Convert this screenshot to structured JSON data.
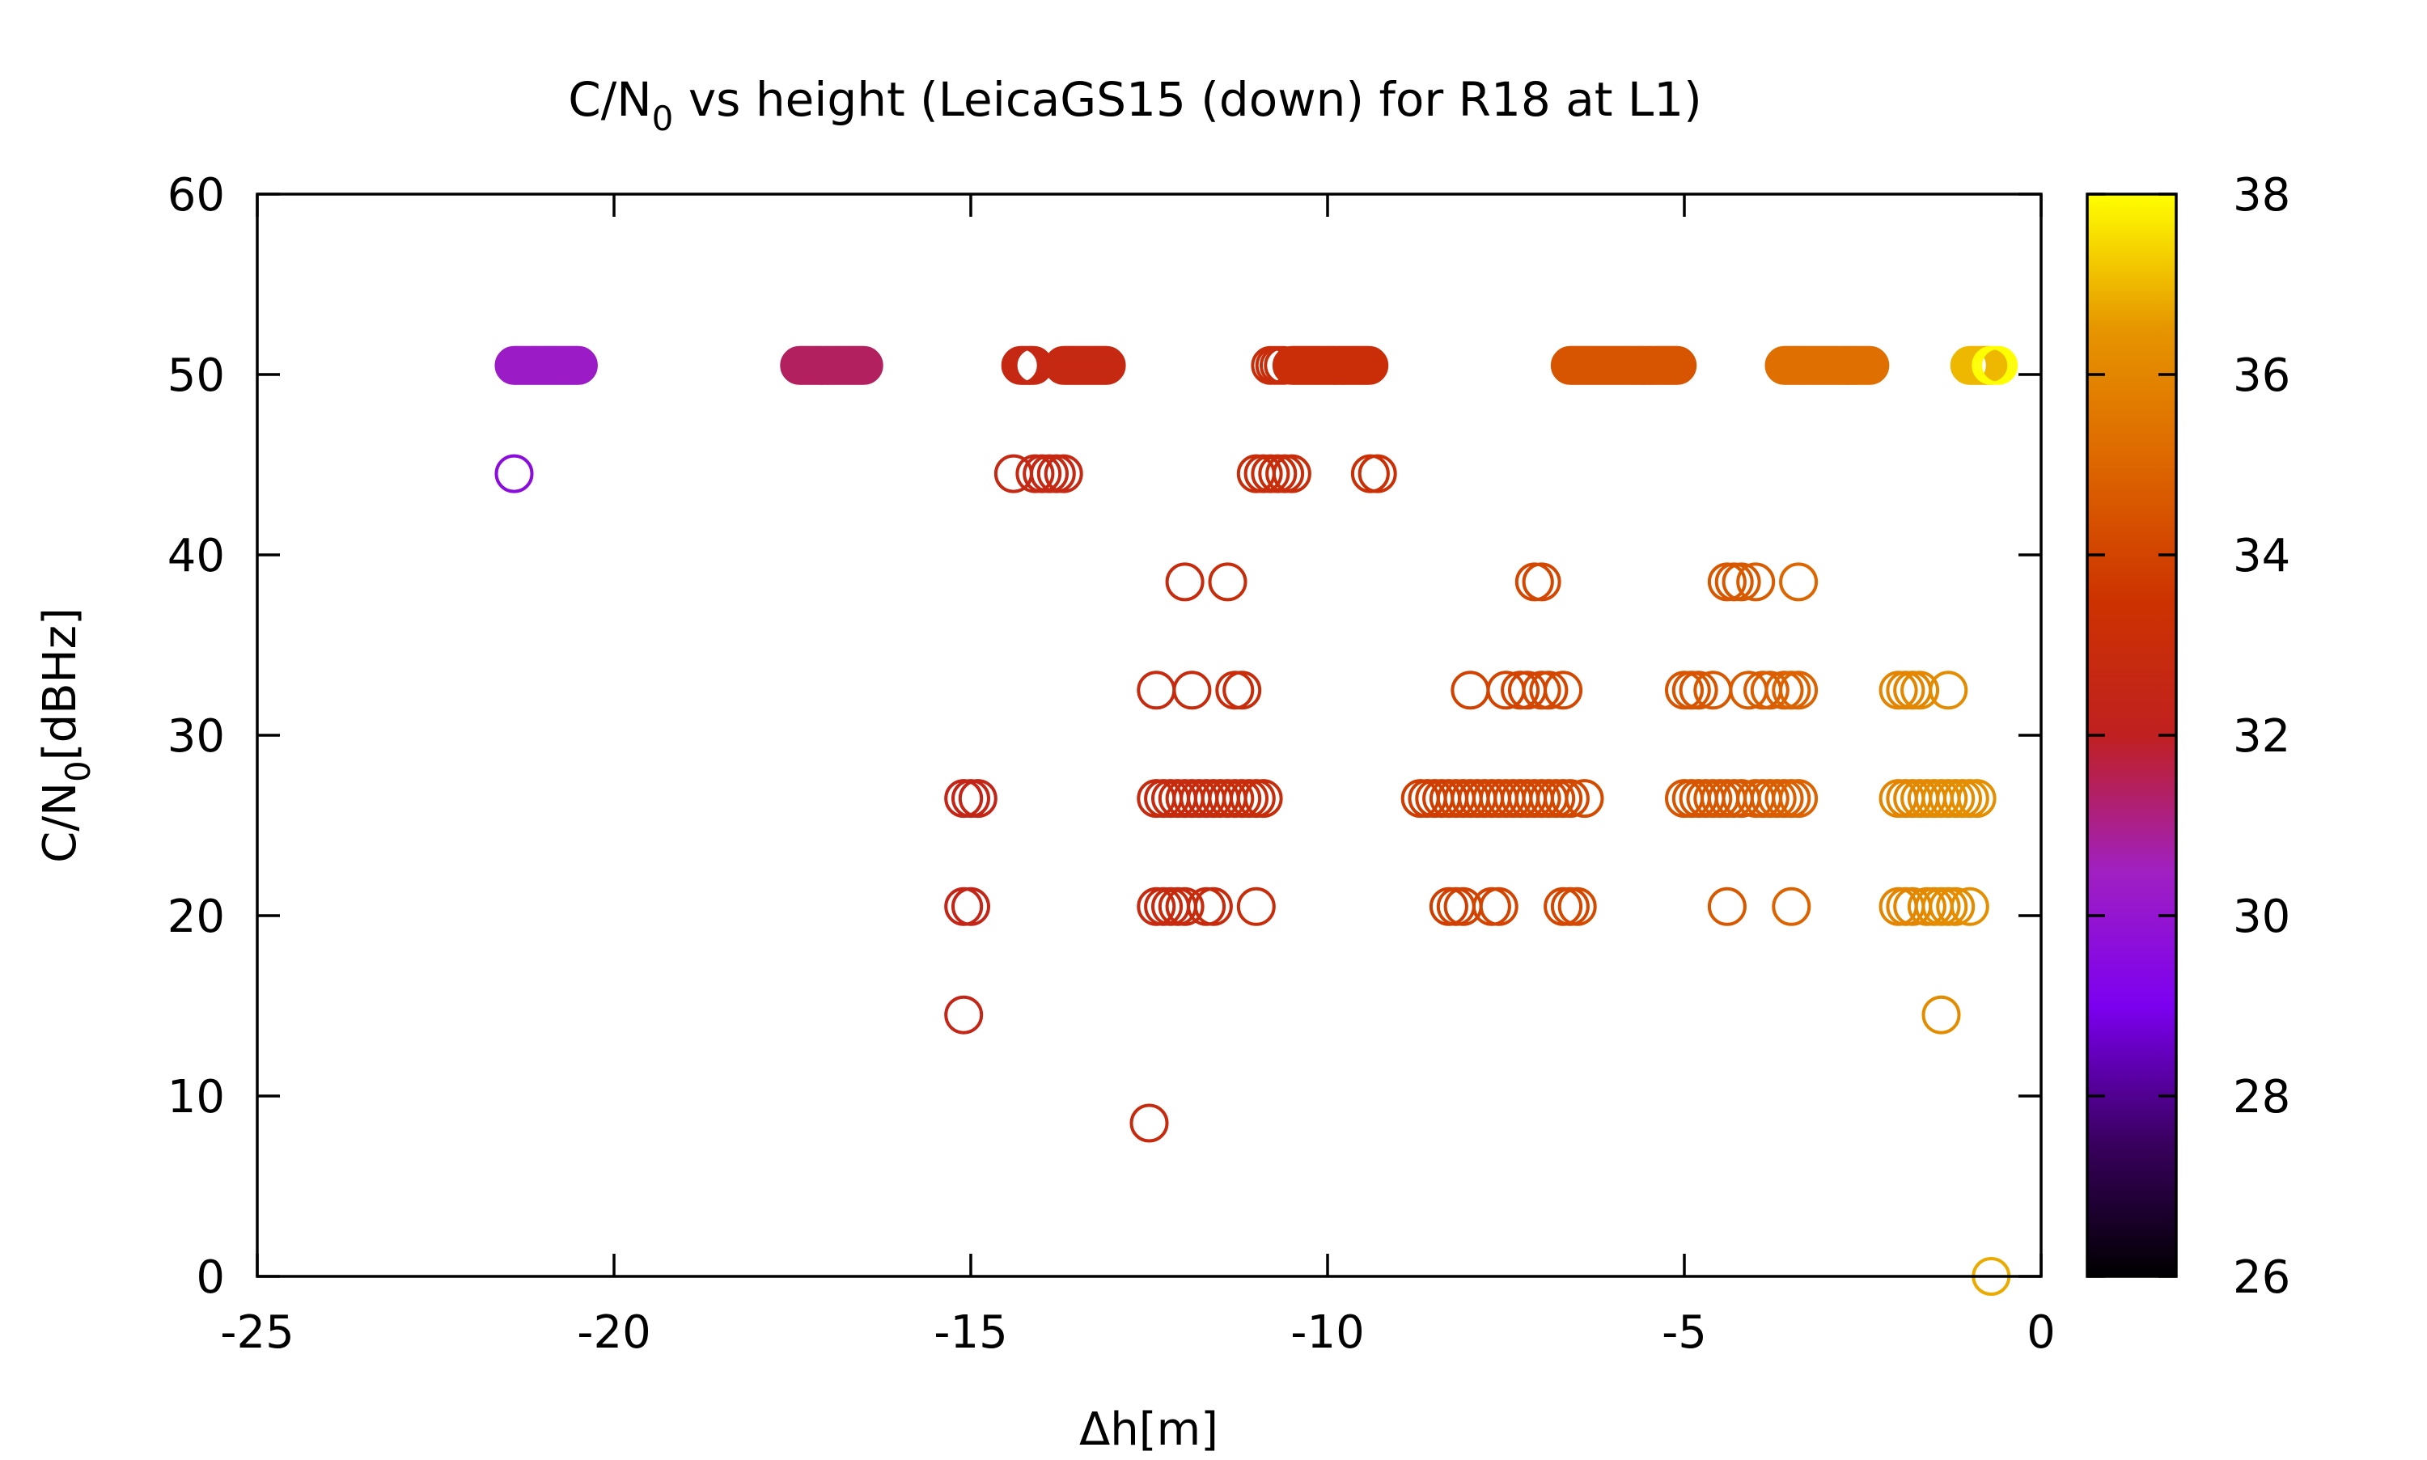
{
  "chart_data": {
    "type": "scatter",
    "title": {
      "main": "C/N",
      "sub": "0",
      "rest": " vs height (LeicaGS15 (down) for R18 at L1)"
    },
    "xlabel": "Δh[m]",
    "ylabel": {
      "main": "C/N",
      "sub": "0",
      "rest": "[dBHz]"
    },
    "xlim": [
      -25,
      0
    ],
    "ylim": [
      0,
      60
    ],
    "xticks": [
      "-25",
      "-20",
      "-15",
      "-10",
      "-5",
      "0"
    ],
    "yticks": [
      "0",
      "10",
      "20",
      "30",
      "40",
      "50",
      "60"
    ],
    "colorbar": {
      "range": [
        26,
        38
      ],
      "ticks": [
        "26",
        "28",
        "30",
        "32",
        "34",
        "36",
        "38"
      ],
      "palette": [
        "#000000",
        "#3a0060",
        "#7c00f0",
        "#a020c0",
        "#c02020",
        "#cc3300",
        "#dd6600",
        "#e69500",
        "#ffff00"
      ]
    },
    "marker": "open-circle",
    "grid": false,
    "legend": "none",
    "series": [
      {
        "y": 50.5,
        "x_start": -21.4,
        "x_end": -20.5,
        "step": 0.03,
        "value": 30.3
      },
      {
        "y": 50.5,
        "x_start": -17.4,
        "x_end": -16.5,
        "step": 0.03,
        "value": 31.4
      },
      {
        "y": 50.5,
        "x_start": -14.3,
        "x_end": -14.1,
        "step": 0.03,
        "value": 32.6
      },
      {
        "y": 50.5,
        "x_start": -13.7,
        "x_end": -13.1,
        "step": 0.03,
        "value": 32.7
      },
      {
        "y": 50.5,
        "x_start": -10.8,
        "x_end": -10.6,
        "step": 0.06,
        "value": 33.0
      },
      {
        "y": 50.5,
        "x_start": -10.5,
        "x_end": -9.4,
        "step": 0.03,
        "value": 33.1
      },
      {
        "y": 50.5,
        "x_start": -6.6,
        "x_end": -5.1,
        "step": 0.03,
        "value": 34.5
      },
      {
        "y": 50.5,
        "x_start": -3.6,
        "x_end": -2.4,
        "step": 0.03,
        "value": 35.3
      },
      {
        "y": 50.5,
        "x_start": -1.0,
        "x_end": -0.7,
        "step": 0.03,
        "value": 37.0
      },
      {
        "y": 50.5,
        "x_start": -0.7,
        "x_end": -0.6,
        "step": 0.05,
        "value": 38.0
      }
    ],
    "points": [
      {
        "x": -21.4,
        "y": 44.5,
        "value": 29.6
      },
      {
        "x": -14.4,
        "y": 44.5,
        "value": 32.6
      },
      {
        "x": -14.1,
        "y": 44.5,
        "value": 32.6
      },
      {
        "x": -14.0,
        "y": 44.5,
        "value": 32.6
      },
      {
        "x": -13.9,
        "y": 44.5,
        "value": 32.6
      },
      {
        "x": -13.8,
        "y": 44.5,
        "value": 32.6
      },
      {
        "x": -13.7,
        "y": 44.5,
        "value": 32.6
      },
      {
        "x": -11.0,
        "y": 44.5,
        "value": 33.0
      },
      {
        "x": -10.9,
        "y": 44.5,
        "value": 33.0
      },
      {
        "x": -10.8,
        "y": 44.5,
        "value": 33.0
      },
      {
        "x": -10.7,
        "y": 44.5,
        "value": 33.0
      },
      {
        "x": -10.6,
        "y": 44.5,
        "value": 33.0
      },
      {
        "x": -10.5,
        "y": 44.5,
        "value": 33.0
      },
      {
        "x": -9.4,
        "y": 44.5,
        "value": 33.2
      },
      {
        "x": -9.3,
        "y": 44.5,
        "value": 33.2
      },
      {
        "x": -12.0,
        "y": 38.5,
        "value": 32.9
      },
      {
        "x": -11.4,
        "y": 38.5,
        "value": 33.0
      },
      {
        "x": -7.1,
        "y": 38.5,
        "value": 34.1
      },
      {
        "x": -7.0,
        "y": 38.5,
        "value": 34.1
      },
      {
        "x": -4.4,
        "y": 38.5,
        "value": 34.6
      },
      {
        "x": -4.3,
        "y": 38.5,
        "value": 34.6
      },
      {
        "x": -4.2,
        "y": 38.5,
        "value": 34.6
      },
      {
        "x": -4.0,
        "y": 38.5,
        "value": 34.7
      },
      {
        "x": -3.4,
        "y": 38.5,
        "value": 35.0
      },
      {
        "x": -12.4,
        "y": 32.5,
        "value": 32.8
      },
      {
        "x": -11.9,
        "y": 32.5,
        "value": 32.9
      },
      {
        "x": -11.3,
        "y": 32.5,
        "value": 33.0
      },
      {
        "x": -11.2,
        "y": 32.5,
        "value": 33.0
      },
      {
        "x": -8.0,
        "y": 32.5,
        "value": 33.9
      },
      {
        "x": -7.5,
        "y": 32.5,
        "value": 34.0
      },
      {
        "x": -7.3,
        "y": 32.5,
        "value": 34.0
      },
      {
        "x": -7.2,
        "y": 32.5,
        "value": 34.0
      },
      {
        "x": -7.0,
        "y": 32.5,
        "value": 34.1
      },
      {
        "x": -6.9,
        "y": 32.5,
        "value": 34.1
      },
      {
        "x": -6.7,
        "y": 32.5,
        "value": 34.1
      },
      {
        "x": -5.0,
        "y": 32.5,
        "value": 34.5
      },
      {
        "x": -4.9,
        "y": 32.5,
        "value": 34.5
      },
      {
        "x": -4.8,
        "y": 32.5,
        "value": 34.5
      },
      {
        "x": -4.6,
        "y": 32.5,
        "value": 34.6
      },
      {
        "x": -4.1,
        "y": 32.5,
        "value": 34.7
      },
      {
        "x": -3.9,
        "y": 32.5,
        "value": 34.7
      },
      {
        "x": -3.8,
        "y": 32.5,
        "value": 34.8
      },
      {
        "x": -3.6,
        "y": 32.5,
        "value": 34.8
      },
      {
        "x": -3.5,
        "y": 32.5,
        "value": 34.9
      },
      {
        "x": -3.4,
        "y": 32.5,
        "value": 34.9
      },
      {
        "x": -2.0,
        "y": 32.5,
        "value": 36.0
      },
      {
        "x": -1.9,
        "y": 32.5,
        "value": 36.0
      },
      {
        "x": -1.8,
        "y": 32.5,
        "value": 36.0
      },
      {
        "x": -1.7,
        "y": 32.5,
        "value": 36.1
      },
      {
        "x": -1.3,
        "y": 32.5,
        "value": 36.2
      },
      {
        "x": -15.1,
        "y": 26.5,
        "value": 32.4
      },
      {
        "x": -15.0,
        "y": 26.5,
        "value": 32.4
      },
      {
        "x": -14.9,
        "y": 26.5,
        "value": 32.4
      },
      {
        "x": -12.4,
        "y": 26.5,
        "value": 32.8
      },
      {
        "x": -12.3,
        "y": 26.5,
        "value": 32.8
      },
      {
        "x": -12.2,
        "y": 26.5,
        "value": 32.8
      },
      {
        "x": -12.1,
        "y": 26.5,
        "value": 32.9
      },
      {
        "x": -12.0,
        "y": 26.5,
        "value": 32.9
      },
      {
        "x": -11.9,
        "y": 26.5,
        "value": 32.9
      },
      {
        "x": -11.8,
        "y": 26.5,
        "value": 32.9
      },
      {
        "x": -11.7,
        "y": 26.5,
        "value": 32.9
      },
      {
        "x": -11.6,
        "y": 26.5,
        "value": 32.9
      },
      {
        "x": -11.5,
        "y": 26.5,
        "value": 33.0
      },
      {
        "x": -11.4,
        "y": 26.5,
        "value": 33.0
      },
      {
        "x": -11.3,
        "y": 26.5,
        "value": 33.0
      },
      {
        "x": -11.2,
        "y": 26.5,
        "value": 33.0
      },
      {
        "x": -11.1,
        "y": 26.5,
        "value": 33.0
      },
      {
        "x": -11.0,
        "y": 26.5,
        "value": 33.0
      },
      {
        "x": -10.9,
        "y": 26.5,
        "value": 33.0
      },
      {
        "x": -8.7,
        "y": 26.5,
        "value": 33.8
      },
      {
        "x": -8.6,
        "y": 26.5,
        "value": 33.8
      },
      {
        "x": -8.5,
        "y": 26.5,
        "value": 33.8
      },
      {
        "x": -8.4,
        "y": 26.5,
        "value": 33.8
      },
      {
        "x": -8.3,
        "y": 26.5,
        "value": 33.8
      },
      {
        "x": -8.2,
        "y": 26.5,
        "value": 33.9
      },
      {
        "x": -8.1,
        "y": 26.5,
        "value": 33.9
      },
      {
        "x": -8.0,
        "y": 26.5,
        "value": 33.9
      },
      {
        "x": -7.9,
        "y": 26.5,
        "value": 33.9
      },
      {
        "x": -7.8,
        "y": 26.5,
        "value": 33.9
      },
      {
        "x": -7.7,
        "y": 26.5,
        "value": 34.0
      },
      {
        "x": -7.6,
        "y": 26.5,
        "value": 34.0
      },
      {
        "x": -7.5,
        "y": 26.5,
        "value": 34.0
      },
      {
        "x": -7.4,
        "y": 26.5,
        "value": 34.0
      },
      {
        "x": -7.3,
        "y": 26.5,
        "value": 34.0
      },
      {
        "x": -7.2,
        "y": 26.5,
        "value": 34.0
      },
      {
        "x": -7.1,
        "y": 26.5,
        "value": 34.1
      },
      {
        "x": -7.0,
        "y": 26.5,
        "value": 34.1
      },
      {
        "x": -6.9,
        "y": 26.5,
        "value": 34.1
      },
      {
        "x": -6.8,
        "y": 26.5,
        "value": 34.1
      },
      {
        "x": -6.7,
        "y": 26.5,
        "value": 34.1
      },
      {
        "x": -6.6,
        "y": 26.5,
        "value": 34.1
      },
      {
        "x": -6.4,
        "y": 26.5,
        "value": 34.2
      },
      {
        "x": -5.0,
        "y": 26.5,
        "value": 34.5
      },
      {
        "x": -4.9,
        "y": 26.5,
        "value": 34.5
      },
      {
        "x": -4.8,
        "y": 26.5,
        "value": 34.5
      },
      {
        "x": -4.7,
        "y": 26.5,
        "value": 34.5
      },
      {
        "x": -4.6,
        "y": 26.5,
        "value": 34.6
      },
      {
        "x": -4.5,
        "y": 26.5,
        "value": 34.6
      },
      {
        "x": -4.4,
        "y": 26.5,
        "value": 34.6
      },
      {
        "x": -4.3,
        "y": 26.5,
        "value": 34.6
      },
      {
        "x": -4.2,
        "y": 26.5,
        "value": 34.6
      },
      {
        "x": -4.0,
        "y": 26.5,
        "value": 34.7
      },
      {
        "x": -3.9,
        "y": 26.5,
        "value": 34.7
      },
      {
        "x": -3.8,
        "y": 26.5,
        "value": 34.7
      },
      {
        "x": -3.7,
        "y": 26.5,
        "value": 34.8
      },
      {
        "x": -3.6,
        "y": 26.5,
        "value": 34.8
      },
      {
        "x": -3.5,
        "y": 26.5,
        "value": 34.8
      },
      {
        "x": -3.4,
        "y": 26.5,
        "value": 34.9
      },
      {
        "x": -2.0,
        "y": 26.5,
        "value": 36.0
      },
      {
        "x": -1.9,
        "y": 26.5,
        "value": 36.0
      },
      {
        "x": -1.8,
        "y": 26.5,
        "value": 36.0
      },
      {
        "x": -1.7,
        "y": 26.5,
        "value": 36.1
      },
      {
        "x": -1.6,
        "y": 26.5,
        "value": 36.1
      },
      {
        "x": -1.5,
        "y": 26.5,
        "value": 36.1
      },
      {
        "x": -1.4,
        "y": 26.5,
        "value": 36.2
      },
      {
        "x": -1.3,
        "y": 26.5,
        "value": 36.2
      },
      {
        "x": -1.2,
        "y": 26.5,
        "value": 36.2
      },
      {
        "x": -1.1,
        "y": 26.5,
        "value": 36.2
      },
      {
        "x": -1.0,
        "y": 26.5,
        "value": 36.3
      },
      {
        "x": -0.9,
        "y": 26.5,
        "value": 36.3
      },
      {
        "x": -15.1,
        "y": 20.5,
        "value": 32.4
      },
      {
        "x": -15.0,
        "y": 20.5,
        "value": 32.4
      },
      {
        "x": -12.4,
        "y": 20.5,
        "value": 32.8
      },
      {
        "x": -12.3,
        "y": 20.5,
        "value": 32.8
      },
      {
        "x": -12.2,
        "y": 20.5,
        "value": 32.8
      },
      {
        "x": -12.1,
        "y": 20.5,
        "value": 32.9
      },
      {
        "x": -12.0,
        "y": 20.5,
        "value": 32.9
      },
      {
        "x": -11.7,
        "y": 20.5,
        "value": 32.9
      },
      {
        "x": -11.6,
        "y": 20.5,
        "value": 32.9
      },
      {
        "x": -11.0,
        "y": 20.5,
        "value": 33.0
      },
      {
        "x": -8.3,
        "y": 20.5,
        "value": 33.8
      },
      {
        "x": -8.2,
        "y": 20.5,
        "value": 33.9
      },
      {
        "x": -8.1,
        "y": 20.5,
        "value": 33.9
      },
      {
        "x": -7.7,
        "y": 20.5,
        "value": 34.0
      },
      {
        "x": -7.6,
        "y": 20.5,
        "value": 34.0
      },
      {
        "x": -6.7,
        "y": 20.5,
        "value": 34.1
      },
      {
        "x": -6.6,
        "y": 20.5,
        "value": 34.1
      },
      {
        "x": -6.5,
        "y": 20.5,
        "value": 34.2
      },
      {
        "x": -4.4,
        "y": 20.5,
        "value": 34.6
      },
      {
        "x": -3.5,
        "y": 20.5,
        "value": 34.9
      },
      {
        "x": -2.0,
        "y": 20.5,
        "value": 36.0
      },
      {
        "x": -1.9,
        "y": 20.5,
        "value": 36.0
      },
      {
        "x": -1.8,
        "y": 20.5,
        "value": 36.0
      },
      {
        "x": -1.6,
        "y": 20.5,
        "value": 36.1
      },
      {
        "x": -1.5,
        "y": 20.5,
        "value": 36.1
      },
      {
        "x": -1.4,
        "y": 20.5,
        "value": 36.2
      },
      {
        "x": -1.3,
        "y": 20.5,
        "value": 36.2
      },
      {
        "x": -1.2,
        "y": 20.5,
        "value": 36.2
      },
      {
        "x": -1.0,
        "y": 20.5,
        "value": 36.3
      },
      {
        "x": -15.1,
        "y": 14.5,
        "value": 32.4
      },
      {
        "x": -1.4,
        "y": 14.5,
        "value": 36.2
      },
      {
        "x": -12.5,
        "y": 8.5,
        "value": 32.8
      },
      {
        "x": -0.7,
        "y": 0.0,
        "value": 36.8
      }
    ]
  }
}
